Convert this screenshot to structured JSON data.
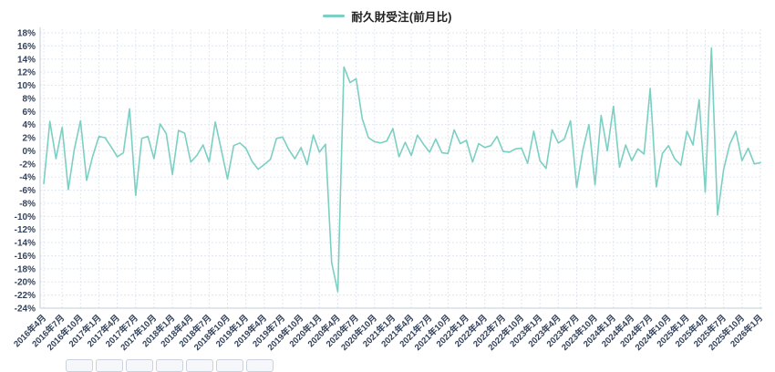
{
  "legend": {
    "label": "耐久財受注(前月比)"
  },
  "chart_data": {
    "type": "line",
    "title": "耐久財受注(前月比)",
    "series_name": "耐久財受注(前月比)",
    "x_start": "2016年4月",
    "x_end": "2026年1月",
    "x_frequency": "monthly",
    "x_tick_every": 3,
    "x_tick_labels": [
      "2016年4月",
      "2016年7月",
      "2016年10月",
      "2017年1月",
      "2017年4月",
      "2017年7月",
      "2017年10月",
      "2018年1月",
      "2018年4月",
      "2018年7月",
      "2018年10月",
      "2019年1月",
      "2019年4月",
      "2019年7月",
      "2019年10月",
      "2020年1月",
      "2020年4月",
      "2020年7月",
      "2020年10月",
      "2021年1月",
      "2021年4月",
      "2021年7月",
      "2021年10月",
      "2022年1月",
      "2022年4月",
      "2022年7月",
      "2022年10月",
      "2023年1月",
      "2023年4月",
      "2023年7月",
      "2023年10月",
      "2024年1月",
      "2024年4月",
      "2024年7月",
      "2024年10月",
      "2025年1月",
      "2025年4月",
      "2025年7月",
      "2025年10月",
      "2026年1月"
    ],
    "values": [
      -5.0,
      4.5,
      -1.2,
      3.6,
      -5.9,
      0.3,
      4.6,
      -4.5,
      -0.8,
      2.2,
      2.0,
      0.6,
      -0.9,
      -0.3,
      6.4,
      -6.8,
      1.9,
      2.2,
      -1.2,
      4.1,
      2.6,
      -3.6,
      3.1,
      2.7,
      -1.7,
      -0.7,
      0.9,
      -1.7,
      4.4,
      0.1,
      -4.3,
      0.8,
      1.2,
      0.4,
      -1.6,
      -2.8,
      -2.1,
      -1.3,
      1.9,
      2.1,
      0.2,
      -1.2,
      0.5,
      -2.1,
      2.4,
      -0.2,
      1.0,
      -17.0,
      -21.5,
      12.8,
      10.4,
      11.0,
      4.9,
      2.0,
      1.4,
      1.2,
      1.5,
      3.4,
      -0.9,
      1.3,
      -0.7,
      2.4,
      1.0,
      -0.2,
      1.8,
      -0.3,
      -0.4,
      3.2,
      1.1,
      1.6,
      -1.7,
      1.1,
      0.5,
      0.8,
      2.2,
      -0.1,
      -0.2,
      0.3,
      0.4,
      -1.9,
      3.0,
      -1.5,
      -2.7,
      3.2,
      1.2,
      1.8,
      4.6,
      -5.6,
      0.1,
      4.0,
      -5.2,
      5.4,
      0.0,
      6.8,
      -2.5,
      0.9,
      -1.5,
      0.3,
      -0.5,
      9.5,
      -5.5,
      -0.4,
      0.8,
      -1.2,
      -2.2,
      3.0,
      0.9,
      7.8,
      -6.3,
      15.7,
      -9.8,
      -2.8,
      1.0,
      3.0,
      -1.5,
      0.4,
      -2.0,
      -1.8
    ],
    "y_ticks": [
      18,
      16,
      14,
      12,
      10,
      8,
      6,
      4,
      2,
      0,
      -2,
      -4,
      -6,
      -8,
      -10,
      -12,
      -14,
      -16,
      -18,
      -20,
      -22,
      -24
    ],
    "y_unit": "%",
    "ylim": [
      -24,
      18
    ],
    "grid": true,
    "legend_position": "top",
    "line_color": "#7bcfc3",
    "grid_color": "#e1e8f2",
    "axis_color": "#c3cdd9",
    "label_color": "#33425b"
  }
}
